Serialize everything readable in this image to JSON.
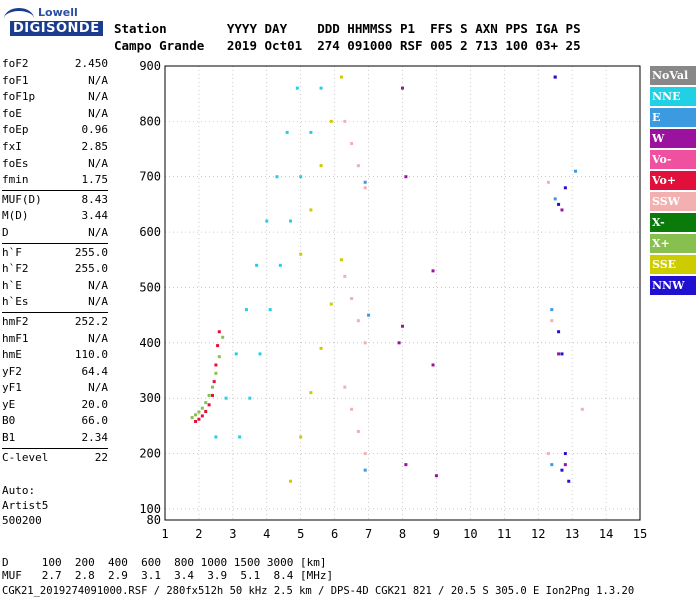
{
  "logo": {
    "line1": "Lowell",
    "line2": "DIGISONDE"
  },
  "header": {
    "row1": "Station        YYYY DAY    DDD HHMMSS P1  FFS S AXN PPS IGA PS",
    "row2": "Campo Grande   2019 Oct01  274 091000 RSF 005 2 713 100 03+ 25"
  },
  "params": {
    "group1": [
      {
        "k": "foF2",
        "v": "2.450"
      },
      {
        "k": "foF1",
        "v": "N/A"
      },
      {
        "k": "foF1p",
        "v": "N/A"
      },
      {
        "k": "foE",
        "v": "N/A"
      },
      {
        "k": "foEp",
        "v": "0.96"
      },
      {
        "k": "fxI",
        "v": "2.85"
      },
      {
        "k": "foEs",
        "v": "N/A"
      },
      {
        "k": "fmin",
        "v": "1.75"
      }
    ],
    "group2": [
      {
        "k": "MUF(D)",
        "v": "8.43"
      },
      {
        "k": "M(D)",
        "v": "3.44"
      },
      {
        "k": "D",
        "v": "N/A"
      }
    ],
    "group3": [
      {
        "k": "h`F",
        "v": "255.0"
      },
      {
        "k": "h`F2",
        "v": "255.0"
      },
      {
        "k": "h`E",
        "v": "N/A"
      },
      {
        "k": "h`Es",
        "v": "N/A"
      }
    ],
    "group4": [
      {
        "k": "hmF2",
        "v": "252.2"
      },
      {
        "k": "hmF1",
        "v": "N/A"
      },
      {
        "k": "hmE",
        "v": "110.0"
      },
      {
        "k": "yF2",
        "v": "64.4"
      },
      {
        "k": "yF1",
        "v": "N/A"
      },
      {
        "k": "yE",
        "v": "20.0"
      },
      {
        "k": "B0",
        "v": "66.0"
      },
      {
        "k": "B1",
        "v": "2.34"
      }
    ],
    "group5": [
      {
        "k": "C-level",
        "v": "22"
      }
    ]
  },
  "auto": {
    "l1": "Auto:",
    "l2": "Artist5",
    "l3": "500200"
  },
  "legend": [
    {
      "label": "NoVal",
      "color": "#888888"
    },
    {
      "label": "NNE",
      "color": "#22d0e6"
    },
    {
      "label": "E",
      "color": "#3b9ae0"
    },
    {
      "label": "W",
      "color": "#9b129e"
    },
    {
      "label": "Vo-",
      "color": "#f050a0"
    },
    {
      "label": "Vo+",
      "color": "#e0103a"
    },
    {
      "label": "SSW",
      "color": "#f2b0b0"
    },
    {
      "label": "X-",
      "color": "#0a7a0a"
    },
    {
      "label": "X+",
      "color": "#88c050"
    },
    {
      "label": "SSE",
      "color": "#cccc00"
    },
    {
      "label": "NNW",
      "color": "#2010d0"
    }
  ],
  "footer": {
    "row1": "D     100  200  400  600  800 1000 1500 3000 [km]",
    "row2": "MUF   2.7  2.8  2.9  3.1  3.4  3.9  5.1  8.4 [MHz]"
  },
  "status": "CGK21_2019274091000.RSF / 280fx512h 50 kHz 2.5 km / DPS-4D CGK21 821 / 20.5 S 305.0 E Ion2Png 1.3.20",
  "chart_data": {
    "type": "scatter",
    "xlim": [
      1,
      15
    ],
    "ylim": [
      80,
      900
    ],
    "xticks": [
      1,
      2,
      3,
      4,
      5,
      6,
      7,
      8,
      9,
      10,
      11,
      12,
      13,
      14,
      15
    ],
    "yticks": [
      100,
      200,
      300,
      400,
      500,
      600,
      700,
      800,
      900
    ],
    "xlabel": "",
    "ylabel": "",
    "grid": true,
    "series": [
      {
        "name": "X+",
        "color": "#88c050",
        "points": [
          [
            1.8,
            265
          ],
          [
            1.9,
            270
          ],
          [
            2.0,
            275
          ],
          [
            2.1,
            282
          ],
          [
            2.2,
            292
          ],
          [
            2.3,
            305
          ],
          [
            2.4,
            320
          ],
          [
            2.5,
            345
          ],
          [
            2.6,
            375
          ],
          [
            2.7,
            410
          ]
        ]
      },
      {
        "name": "Vo+",
        "color": "#e0103a",
        "points": [
          [
            1.9,
            258
          ],
          [
            2.0,
            262
          ],
          [
            2.1,
            268
          ],
          [
            2.2,
            276
          ],
          [
            2.3,
            288
          ],
          [
            2.4,
            305
          ],
          [
            2.45,
            330
          ],
          [
            2.5,
            360
          ],
          [
            2.55,
            395
          ],
          [
            2.6,
            420
          ]
        ]
      },
      {
        "name": "NNE",
        "color": "#22d0e6",
        "points": [
          [
            2.5,
            230
          ],
          [
            2.8,
            300
          ],
          [
            3.1,
            380
          ],
          [
            3.4,
            460
          ],
          [
            3.7,
            540
          ],
          [
            4.0,
            620
          ],
          [
            4.3,
            700
          ],
          [
            4.6,
            780
          ],
          [
            4.9,
            860
          ],
          [
            3.2,
            230
          ],
          [
            3.5,
            300
          ],
          [
            3.8,
            380
          ],
          [
            4.1,
            460
          ],
          [
            4.4,
            540
          ],
          [
            4.7,
            620
          ],
          [
            5.0,
            700
          ],
          [
            5.3,
            780
          ],
          [
            5.6,
            860
          ]
        ]
      },
      {
        "name": "SSE",
        "color": "#cccc00",
        "points": [
          [
            4.7,
            150
          ],
          [
            5.0,
            230
          ],
          [
            5.3,
            310
          ],
          [
            5.6,
            390
          ],
          [
            5.9,
            470
          ],
          [
            6.2,
            550
          ],
          [
            5.0,
            560
          ],
          [
            5.3,
            640
          ],
          [
            5.6,
            720
          ],
          [
            5.9,
            800
          ],
          [
            6.2,
            880
          ]
        ]
      },
      {
        "name": "SSW",
        "color": "#f2b0b0",
        "points": [
          [
            6.3,
            320
          ],
          [
            6.5,
            280
          ],
          [
            6.7,
            240
          ],
          [
            6.9,
            200
          ],
          [
            6.3,
            520
          ],
          [
            6.5,
            480
          ],
          [
            6.7,
            440
          ],
          [
            6.9,
            400
          ],
          [
            6.3,
            800
          ],
          [
            6.5,
            760
          ],
          [
            6.7,
            720
          ],
          [
            6.9,
            680
          ],
          [
            12.4,
            440
          ],
          [
            12.3,
            690
          ],
          [
            13.3,
            280
          ],
          [
            12.3,
            200
          ]
        ]
      },
      {
        "name": "W",
        "color": "#9b129e",
        "points": [
          [
            8.0,
            860
          ],
          [
            8.1,
            700
          ],
          [
            8.0,
            430
          ],
          [
            7.9,
            400
          ],
          [
            8.1,
            180
          ],
          [
            8.9,
            530
          ],
          [
            8.9,
            360
          ],
          [
            9.0,
            160
          ],
          [
            12.6,
            380
          ],
          [
            12.7,
            640
          ],
          [
            12.8,
            180
          ],
          [
            12.5,
            880
          ]
        ]
      },
      {
        "name": "NNW",
        "color": "#2010d0",
        "points": [
          [
            12.6,
            420
          ],
          [
            12.7,
            380
          ],
          [
            12.6,
            650
          ],
          [
            12.8,
            680
          ],
          [
            12.7,
            170
          ],
          [
            12.8,
            200
          ],
          [
            12.9,
            150
          ],
          [
            12.5,
            880
          ]
        ]
      },
      {
        "name": "E",
        "color": "#3b9ae0",
        "points": [
          [
            6.9,
            170
          ],
          [
            7.0,
            450
          ],
          [
            6.9,
            690
          ],
          [
            12.4,
            460
          ],
          [
            12.5,
            660
          ],
          [
            12.4,
            180
          ],
          [
            13.1,
            710
          ]
        ]
      }
    ]
  }
}
